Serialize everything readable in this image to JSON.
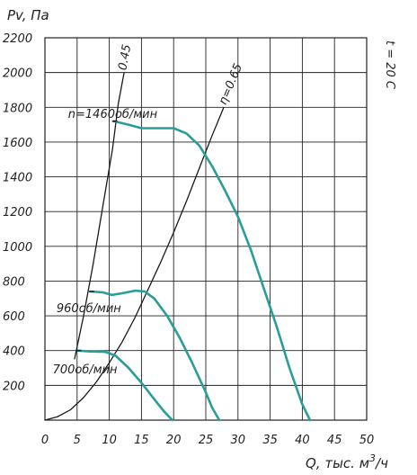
{
  "chart_data": {
    "type": "line",
    "title": "",
    "xlabel": "Q, тыс. м³/ч",
    "xlabel_main": "Q, тыс. м",
    "xlabel_sup": "3",
    "xlabel_tail": "/ч",
    "ylabel": "Pv, Па",
    "side_note": "t = 20 С",
    "xlim": [
      0,
      50
    ],
    "ylim": [
      0,
      2200
    ],
    "x_ticks": [
      "0",
      "5",
      "10",
      "15",
      "20",
      "25",
      "30",
      "35",
      "40",
      "45",
      "50"
    ],
    "y_ticks": [
      "200",
      "400",
      "600",
      "800",
      "1000",
      "1200",
      "1400",
      "1600",
      "1800",
      "2000",
      "2200"
    ],
    "grid": true,
    "series": [
      {
        "name": "n=1460об/мин",
        "color": "#2a9d9a",
        "x": [
          10.7,
          13,
          15,
          18,
          20,
          22,
          24,
          26,
          28,
          30,
          32,
          34,
          36,
          38,
          40,
          41.2
        ],
        "y": [
          1720,
          1700,
          1680,
          1680,
          1680,
          1650,
          1580,
          1460,
          1320,
          1170,
          980,
          760,
          540,
          300,
          90,
          0
        ]
      },
      {
        "name": "960об/мин",
        "color": "#2a9d9a",
        "x": [
          7.1,
          9,
          10.4,
          12,
          14,
          15.5,
          17,
          19,
          21,
          23,
          25,
          26,
          27.1
        ],
        "y": [
          740,
          735,
          720,
          730,
          745,
          740,
          700,
          600,
          470,
          320,
          160,
          70,
          0
        ]
      },
      {
        "name": "700об/мин",
        "color": "#2a9d9a",
        "x": [
          5.1,
          7,
          9.4,
          11,
          13,
          15,
          17,
          18.5,
          19.8
        ],
        "y": [
          400,
          395,
          393,
          370,
          300,
          215,
          120,
          50,
          0
        ]
      }
    ],
    "efficiency_lines": [
      {
        "label": "0.45",
        "x": [
          4.6,
          6,
          7.5,
          9,
          10.5,
          11.4,
          12.3
        ],
        "y": [
          350,
          600,
          900,
          1230,
          1560,
          1820,
          2000
        ]
      },
      {
        "label": "η=0.65",
        "x": [
          0,
          2,
          4,
          6,
          8,
          10,
          12,
          14,
          16,
          18,
          20,
          22,
          24,
          26,
          27.8
        ],
        "y": [
          0,
          20,
          60,
          130,
          220,
          330,
          450,
          590,
          750,
          910,
          1080,
          1260,
          1450,
          1640,
          1800
        ]
      }
    ],
    "annotations": [
      {
        "text": "n=1460об/мин",
        "x": 3.6,
        "y": 1740
      },
      {
        "text": "960об/мин",
        "x": 1.8,
        "y": 620
      },
      {
        "text": "700об/мин",
        "x": 1.2,
        "y": 270
      }
    ]
  }
}
